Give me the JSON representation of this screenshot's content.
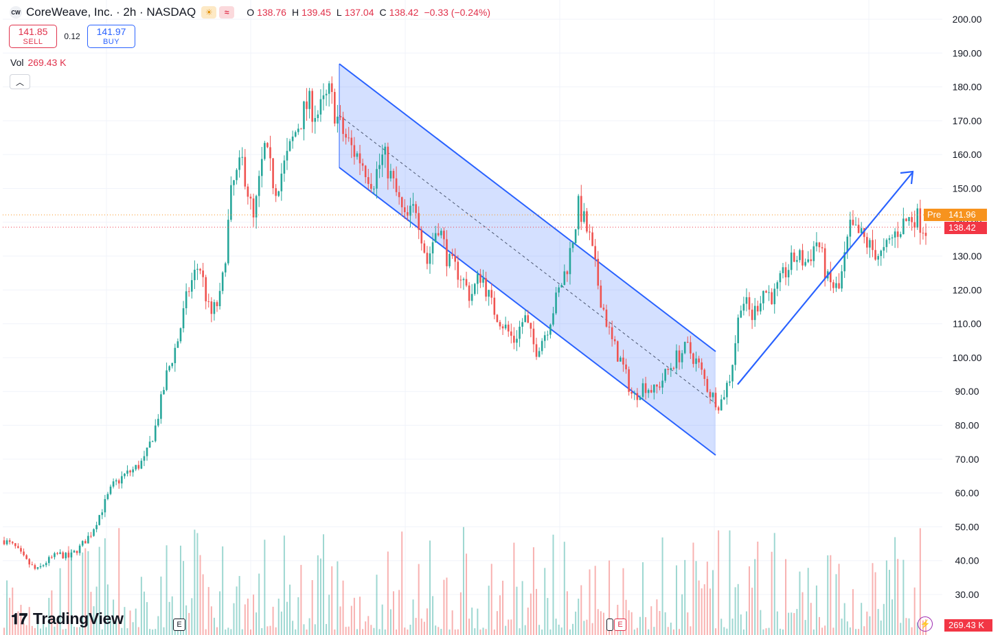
{
  "header": {
    "logo_text": "CW",
    "title": "CoreWeave, Inc. · 2h · NASDAQ",
    "session_icon": "sun-icon",
    "wave_icon": "wave-icon",
    "ohlc": {
      "o_label": "O",
      "o": "138.76",
      "h_label": "H",
      "h": "139.45",
      "l_label": "L",
      "l": "137.04",
      "c_label": "C",
      "c": "138.42",
      "change": "−0.33 (−0.24%)"
    }
  },
  "trade": {
    "sell_price": "141.85",
    "sell_label": "SELL",
    "spread": "0.12",
    "buy_price": "141.97",
    "buy_label": "BUY"
  },
  "volume": {
    "label": "Vol",
    "value": "269.43 K",
    "axis_label": "269.43 K"
  },
  "collapse_icon": "chevron-up-icon",
  "branding": {
    "logo": "TradingView",
    "icon": "tradingview-logo-icon"
  },
  "price_labels": {
    "pre_tag": "Pre",
    "pre": "141.96",
    "last": "138.42"
  },
  "events": {
    "earnings": "E"
  },
  "colors": {
    "up": "#26a69a",
    "down": "#ef5350",
    "channel": "#2962ff",
    "pre": "#f7931e",
    "last": "#f23645"
  },
  "chart_data": {
    "type": "candlestick",
    "y_ticks": [
      "200.00",
      "190.00",
      "180.00",
      "170.00",
      "160.00",
      "150.00",
      "140.00",
      "130.00",
      "120.00",
      "110.00",
      "100.00",
      "90.00",
      "80.00",
      "70.00",
      "60.00",
      "50.00",
      "40.00",
      "30.00"
    ],
    "ylim": [
      24,
      204
    ],
    "grid": true,
    "annotations": {
      "channel": {
        "type": "descending-channel",
        "upper": [
          [
            0,
            187
          ],
          [
            0.425,
            102
          ]
        ],
        "lower": [
          [
            0,
            156
          ],
          [
            0.425,
            71
          ]
        ]
      },
      "arrow": {
        "type": "up-trend-arrow",
        "from": [
          0.0,
          92
        ],
        "to": [
          1,
          155
        ]
      }
    },
    "approx_close_path": [
      46,
      44,
      40,
      37,
      40,
      42,
      41,
      44,
      48,
      55,
      62,
      65,
      67,
      70,
      80,
      95,
      105,
      120,
      128,
      112,
      118,
      150,
      158,
      140,
      162,
      150,
      158,
      168,
      175,
      172,
      178,
      168,
      162,
      158,
      152,
      160,
      150,
      140,
      145,
      128,
      140,
      128,
      125,
      118,
      125,
      115,
      110,
      105,
      112,
      102,
      108,
      118,
      128,
      145,
      135,
      118,
      105,
      98,
      88,
      92,
      90,
      95,
      100,
      103,
      98,
      90,
      86,
      95,
      118,
      112,
      120,
      118,
      125,
      130,
      128,
      135,
      122,
      120,
      138,
      136,
      132,
      130,
      136,
      140,
      142,
      138
    ]
  }
}
